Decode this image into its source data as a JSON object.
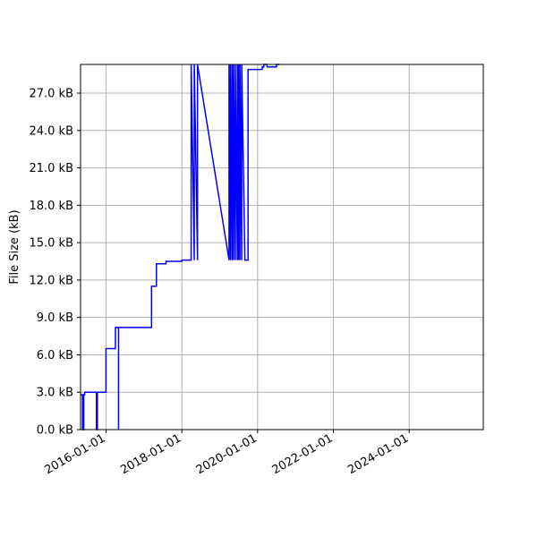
{
  "chart_data": {
    "type": "line",
    "title": "",
    "xlabel": "",
    "ylabel": "File Size (kB)",
    "x_scale": "date",
    "xlim": [
      "2015-05-01",
      "2025-12-15"
    ],
    "ylim": [
      0,
      29.3
    ],
    "grid": true,
    "line_color": "#0000ff",
    "grid_color": "#b0b0b0",
    "x_ticks": [
      {
        "value": "2016-01-01",
        "label": "2016-01-01"
      },
      {
        "value": "2018-01-01",
        "label": "2018-01-01"
      },
      {
        "value": "2020-01-01",
        "label": "2020-01-01"
      },
      {
        "value": "2022-01-01",
        "label": "2022-01-01"
      },
      {
        "value": "2024-01-01",
        "label": "2024-01-01"
      }
    ],
    "y_ticks": [
      {
        "value": 0,
        "label": "0.0 kB"
      },
      {
        "value": 3,
        "label": "3.0 kB"
      },
      {
        "value": 6,
        "label": "6.0 kB"
      },
      {
        "value": 9,
        "label": "9.0 kB"
      },
      {
        "value": 12,
        "label": "12.0 kB"
      },
      {
        "value": 15,
        "label": "15.0 kB"
      },
      {
        "value": 18,
        "label": "18.0 kB"
      },
      {
        "value": 21,
        "label": "21.0 kB"
      },
      {
        "value": 24,
        "label": "24.0 kB"
      },
      {
        "value": 27,
        "label": "27.0 kB"
      }
    ],
    "series": [
      {
        "x": [
          "2015-05-01",
          "2015-05-20",
          "2015-05-20",
          "2015-06-01",
          "2015-06-01",
          "2015-06-10",
          "2015-06-10",
          "2015-10-01",
          "2015-10-01",
          "2015-10-10",
          "2015-10-10",
          "2016-01-01",
          "2016-01-01",
          "2016-02-20",
          "2016-02-20",
          "2016-04-01",
          "2016-04-01",
          "2016-05-01",
          "2016-05-01",
          "2016-05-01",
          "2016-05-01",
          "2016-05-01",
          "2016-05-01",
          "2016-05-01",
          "2017-03-15",
          "2017-03-15",
          "2017-05-01",
          "2017-05-01",
          "2017-08-01",
          "2017-08-01",
          "2018-01-01",
          "2018-01-01",
          "2018-04-01",
          "2018-04-01",
          "2018-05-01",
          "2018-05-01",
          "2018-06-01",
          "2018-06-01",
          "2019-04-01",
          "2019-04-01",
          "2019-04-15",
          "2019-04-15",
          "2019-05-01",
          "2019-05-01",
          "2019-05-15",
          "2019-05-15",
          "2019-06-01",
          "2019-06-01",
          "2019-06-20",
          "2019-06-20",
          "2019-07-01",
          "2019-07-01",
          "2019-07-15",
          "2019-07-15",
          "2019-08-01",
          "2019-08-01",
          "2019-09-01",
          "2019-09-01",
          "2019-09-15",
          "2019-09-15",
          "2019-10-01",
          "2019-10-01",
          "2020-01-01",
          "2020-01-01",
          "2020-02-15",
          "2020-02-15",
          "2020-03-01",
          "2020-03-01",
          "2020-04-01",
          "2020-04-01",
          "2020-05-01",
          "2020-05-01",
          "2020-07-01",
          "2020-07-01",
          "2020-08-01"
        ],
        "y": [
          2.8,
          2.8,
          0,
          0,
          2.8,
          2.8,
          3.0,
          3.0,
          0,
          0,
          3.0,
          3.0,
          6.5,
          6.5,
          6.5,
          6.5,
          8.2,
          8.2,
          0,
          8.2,
          0,
          8.2,
          0,
          8.2,
          8.2,
          11.5,
          11.5,
          13.3,
          13.3,
          13.5,
          13.5,
          13.6,
          13.6,
          29.3,
          13.6,
          29.3,
          13.6,
          29.3,
          13.6,
          29.3,
          13.6,
          29.3,
          13.6,
          29.3,
          13.6,
          29.3,
          13.6,
          29.3,
          13.6,
          29.3,
          13.6,
          29.3,
          13.6,
          29.3,
          13.6,
          29.3,
          13.6,
          13.6,
          13.6,
          13.6,
          13.6,
          28.9,
          28.9,
          28.9,
          28.9,
          29.1,
          29.1,
          29.3,
          29.3,
          29.1,
          29.1,
          29.1,
          29.1,
          29.3,
          29.3
        ]
      }
    ]
  }
}
